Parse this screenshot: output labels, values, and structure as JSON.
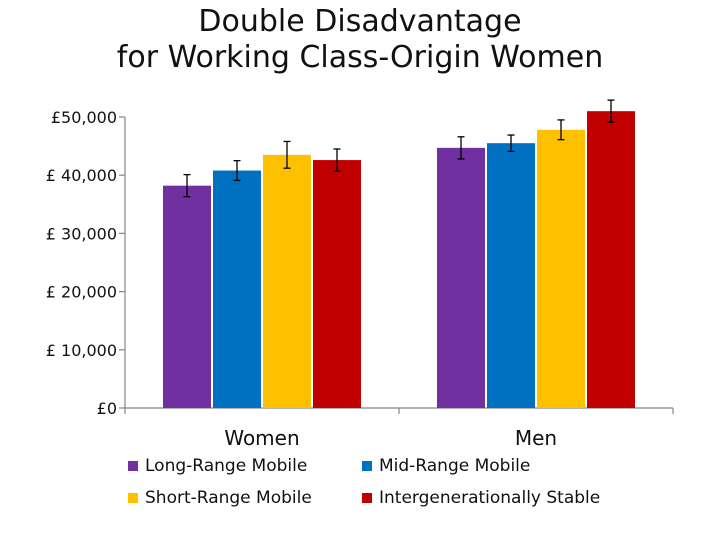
{
  "title": {
    "line1": "Double Disadvantage",
    "line2": "for Working Class-Origin Women"
  },
  "colors": {
    "Long-Range Mobile": "#7030A0",
    "Mid-Range Mobile": "#0070C0",
    "Short-Range Mobile": "#FFC000",
    "Intergenerationally Stable": "#C00000"
  },
  "chart_data": {
    "type": "bar",
    "title": "Double Disadvantage for Working Class-Origin Women",
    "xlabel": "",
    "ylabel": "",
    "categories": [
      "Women",
      "Men"
    ],
    "ylim": [
      0,
      50000
    ],
    "yticks": [
      0,
      10000,
      20000,
      30000,
      40000,
      50000
    ],
    "ytick_labels": [
      "£0",
      "£ 10,000",
      "£ 20,000",
      "£ 30,000",
      "£ 40,000",
      "£50,000"
    ],
    "grid": false,
    "legend_position": "bottom",
    "series": [
      {
        "name": "Long-Range Mobile",
        "values": [
          38200,
          44700
        ],
        "error": [
          1900,
          1900
        ]
      },
      {
        "name": "Mid-Range Mobile",
        "values": [
          40800,
          45500
        ],
        "error": [
          1700,
          1400
        ]
      },
      {
        "name": "Short-Range Mobile",
        "values": [
          43500,
          47800
        ],
        "error": [
          2300,
          1700
        ]
      },
      {
        "name": "Intergenerationally Stable",
        "values": [
          42600,
          51000
        ],
        "error": [
          1900,
          1900
        ]
      }
    ]
  }
}
